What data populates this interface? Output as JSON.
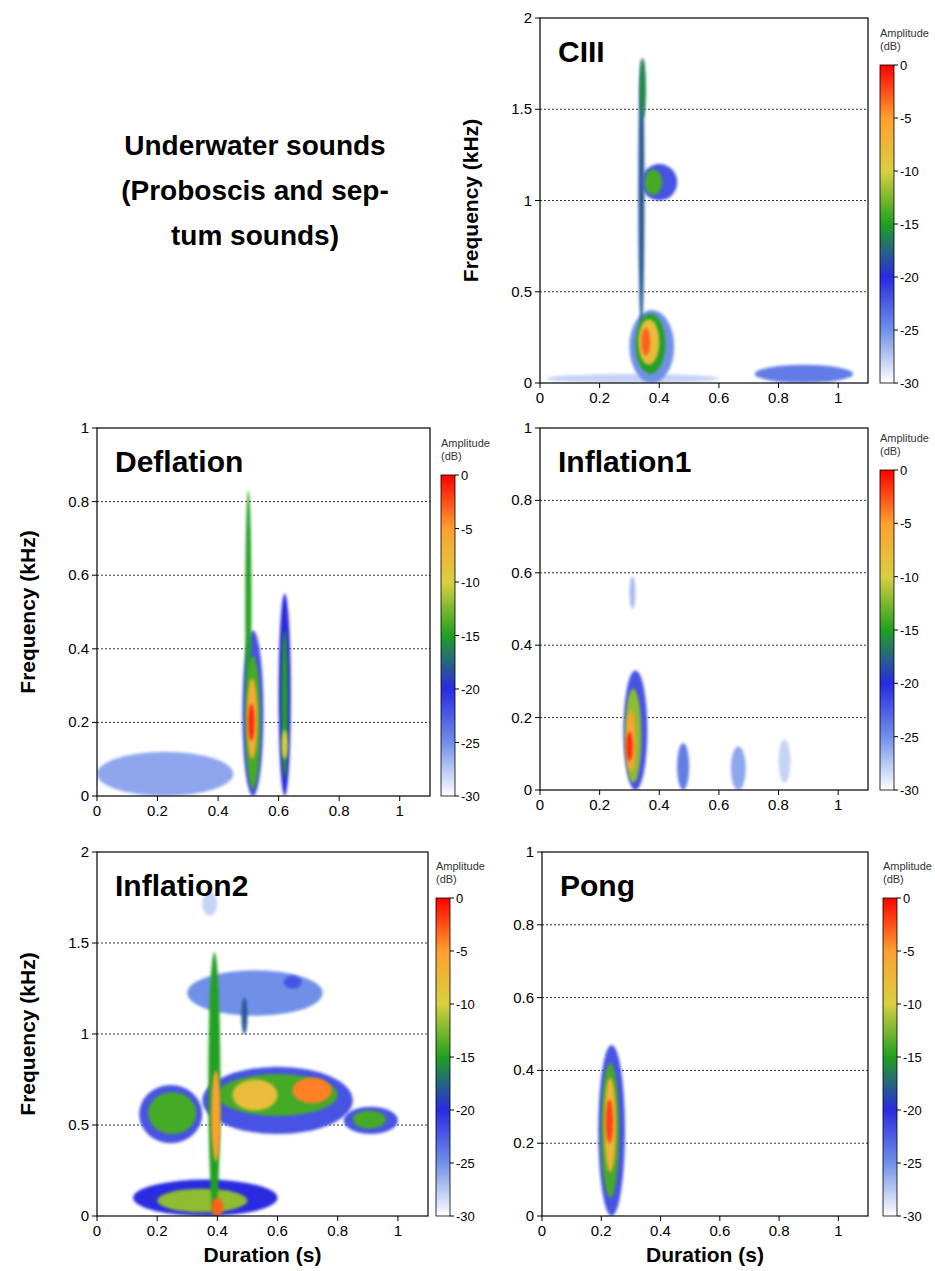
{
  "title_lines": [
    "Underwater sounds",
    "(Proboscis and sep-",
    "tum sounds)"
  ],
  "chart_data": [
    {
      "type": "spectrogram",
      "title": "CIII",
      "ylabel": "Frequency (kHz)",
      "xlim": [
        0,
        1.1
      ],
      "xticks": [
        0,
        0.2,
        0.4,
        0.6,
        0.8,
        1
      ],
      "ylim": [
        0,
        2
      ],
      "yticks": [
        0,
        0.5,
        1,
        1.5,
        2
      ],
      "grid": true,
      "colorbar_label": "Amplitude (dB)",
      "colorbar_lim": [
        -30,
        0
      ],
      "colorbar_ticks": [
        0,
        -5,
        -10,
        -15,
        -20,
        -25,
        -30
      ],
      "colors": [
        "#ff0000",
        "#ffa030",
        "#d8d040",
        "#20a020",
        "#2a2ae0",
        "#7090e8",
        "#ffffff"
      ],
      "cells": [
        {
          "x0": 0.02,
          "x1": 0.6,
          "y0": 0,
          "y1": 0.05,
          "value": -28
        },
        {
          "x0": 0.72,
          "x1": 1.05,
          "y0": 0,
          "y1": 0.1,
          "value": -24
        },
        {
          "x0": 0.3,
          "x1": 0.45,
          "y0": 0,
          "y1": 0.4,
          "value": -25
        },
        {
          "x0": 0.33,
          "x1": 0.35,
          "y0": 0.3,
          "y1": 1.78,
          "value": -18
        },
        {
          "x0": 0.34,
          "x1": 0.46,
          "y0": 1.0,
          "y1": 1.2,
          "value": -22
        },
        {
          "x0": 0.35,
          "x1": 0.41,
          "y0": 1.03,
          "y1": 1.17,
          "value": -14
        },
        {
          "x0": 0.335,
          "x1": 0.355,
          "y0": 1.45,
          "y1": 1.78,
          "value": -16
        },
        {
          "x0": 0.32,
          "x1": 0.42,
          "y0": 0.05,
          "y1": 0.38,
          "value": -15
        },
        {
          "x0": 0.33,
          "x1": 0.4,
          "y0": 0.1,
          "y1": 0.35,
          "value": -8
        },
        {
          "x0": 0.34,
          "x1": 0.37,
          "y0": 0.15,
          "y1": 0.3,
          "value": -3
        }
      ]
    },
    {
      "type": "spectrogram",
      "title": "Deflation",
      "ylabel": "Frequency (kHz)",
      "xlim": [
        0,
        1.1
      ],
      "xticks": [
        0,
        0.2,
        0.4,
        0.6,
        0.8,
        1
      ],
      "ylim": [
        0,
        1
      ],
      "yticks": [
        0,
        0.2,
        0.4,
        0.6,
        0.8,
        1
      ],
      "grid": true,
      "colorbar_label": "Amplitude (dB)",
      "colorbar_lim": [
        -30,
        0
      ],
      "colorbar_ticks": [
        0,
        -5,
        -10,
        -15,
        -20,
        -25,
        -30
      ],
      "colors": [
        "#ff0000",
        "#ffa030",
        "#d8d040",
        "#20a020",
        "#2a2ae0",
        "#7090e8",
        "#ffffff"
      ],
      "cells": [
        {
          "x0": 0.0,
          "x1": 0.45,
          "y0": 0,
          "y1": 0.12,
          "value": -26
        },
        {
          "x0": 0.48,
          "x1": 0.55,
          "y0": 0,
          "y1": 0.45,
          "value": -22
        },
        {
          "x0": 0.49,
          "x1": 0.51,
          "y0": 0.2,
          "y1": 0.83,
          "value": -15
        },
        {
          "x0": 0.49,
          "x1": 0.54,
          "y0": 0.02,
          "y1": 0.38,
          "value": -14
        },
        {
          "x0": 0.495,
          "x1": 0.53,
          "y0": 0.1,
          "y1": 0.32,
          "value": -6
        },
        {
          "x0": 0.5,
          "x1": 0.52,
          "y0": 0.15,
          "y1": 0.25,
          "value": -1
        },
        {
          "x0": 0.6,
          "x1": 0.64,
          "y0": 0,
          "y1": 0.55,
          "value": -20
        },
        {
          "x0": 0.61,
          "x1": 0.63,
          "y0": 0.05,
          "y1": 0.45,
          "value": -15
        },
        {
          "x0": 0.61,
          "x1": 0.63,
          "y0": 0.1,
          "y1": 0.18,
          "value": -10
        }
      ]
    },
    {
      "type": "spectrogram",
      "title": "Inflation1",
      "xlim": [
        0,
        1.1
      ],
      "xticks": [
        0,
        0.2,
        0.4,
        0.6,
        0.8,
        1
      ],
      "ylim": [
        0,
        1
      ],
      "yticks": [
        0,
        0.2,
        0.4,
        0.6,
        0.8,
        1
      ],
      "grid": true,
      "colorbar_label": "Amplitude (dB)",
      "colorbar_lim": [
        -30,
        0
      ],
      "colorbar_ticks": [
        0,
        -5,
        -10,
        -15,
        -20,
        -25,
        -30
      ],
      "colors": [
        "#ff0000",
        "#ffa030",
        "#d8d040",
        "#20a020",
        "#2a2ae0",
        "#7090e8",
        "#ffffff"
      ],
      "cells": [
        {
          "x0": 0.46,
          "x1": 0.5,
          "y0": 0,
          "y1": 0.13,
          "value": -24
        },
        {
          "x0": 0.64,
          "x1": 0.69,
          "y0": 0,
          "y1": 0.12,
          "value": -26
        },
        {
          "x0": 0.8,
          "x1": 0.84,
          "y0": 0.02,
          "y1": 0.14,
          "value": -28
        },
        {
          "x0": 0.3,
          "x1": 0.32,
          "y0": 0.5,
          "y1": 0.59,
          "value": -27
        },
        {
          "x0": 0.28,
          "x1": 0.36,
          "y0": 0,
          "y1": 0.33,
          "value": -22
        },
        {
          "x0": 0.285,
          "x1": 0.34,
          "y0": 0.02,
          "y1": 0.28,
          "value": -12
        },
        {
          "x0": 0.29,
          "x1": 0.32,
          "y0": 0.05,
          "y1": 0.22,
          "value": -5
        },
        {
          "x0": 0.29,
          "x1": 0.31,
          "y0": 0.08,
          "y1": 0.16,
          "value": -1
        }
      ]
    },
    {
      "type": "spectrogram",
      "title": "Inflation2",
      "ylabel": "Frequency (kHz)",
      "xlabel": "Duration (s)",
      "xlim": [
        0,
        1.1
      ],
      "xticks": [
        0,
        0.2,
        0.4,
        0.6,
        0.8,
        1
      ],
      "ylim": [
        0,
        2
      ],
      "yticks": [
        0,
        0.5,
        1,
        1.5,
        2
      ],
      "grid": true,
      "colorbar_label": "Amplitude (dB)",
      "colorbar_lim": [
        -30,
        0
      ],
      "colorbar_ticks": [
        0,
        -5,
        -10,
        -15,
        -20,
        -25,
        -30
      ],
      "colors": [
        "#ff0000",
        "#ffa030",
        "#d8d040",
        "#20a020",
        "#2a2ae0",
        "#7090e8",
        "#ffffff"
      ],
      "cells": [
        {
          "x0": 0.3,
          "x1": 0.75,
          "y0": 1.1,
          "y1": 1.35,
          "value": -25
        },
        {
          "x0": 0.35,
          "x1": 0.4,
          "y0": 1.65,
          "y1": 1.78,
          "value": -28
        },
        {
          "x0": 0.48,
          "x1": 0.5,
          "y0": 1.0,
          "y1": 1.2,
          "value": -18
        },
        {
          "x0": 0.62,
          "x1": 0.68,
          "y0": 1.25,
          "y1": 1.32,
          "value": -22
        },
        {
          "x0": 0.14,
          "x1": 0.35,
          "y0": 0.4,
          "y1": 0.72,
          "value": -22
        },
        {
          "x0": 0.35,
          "x1": 0.85,
          "y0": 0.45,
          "y1": 0.82,
          "value": -22
        },
        {
          "x0": 0.82,
          "x1": 1.0,
          "y0": 0.45,
          "y1": 0.6,
          "value": -22
        },
        {
          "x0": 0.12,
          "x1": 0.6,
          "y0": 0,
          "y1": 0.2,
          "value": -20
        },
        {
          "x0": 0.17,
          "x1": 0.33,
          "y0": 0.45,
          "y1": 0.68,
          "value": -14
        },
        {
          "x0": 0.4,
          "x1": 0.8,
          "y0": 0.55,
          "y1": 0.78,
          "value": -14
        },
        {
          "x0": 0.85,
          "x1": 0.96,
          "y0": 0.48,
          "y1": 0.58,
          "value": -14
        },
        {
          "x0": 0.2,
          "x1": 0.5,
          "y0": 0.02,
          "y1": 0.15,
          "value": -12
        },
        {
          "x0": 0.37,
          "x1": 0.41,
          "y0": 0,
          "y1": 1.45,
          "value": -15
        },
        {
          "x0": 0.45,
          "x1": 0.6,
          "y0": 0.58,
          "y1": 0.75,
          "value": -8
        },
        {
          "x0": 0.38,
          "x1": 0.41,
          "y0": 0.3,
          "y1": 0.8,
          "value": -5
        },
        {
          "x0": 0.65,
          "x1": 0.78,
          "y0": 0.62,
          "y1": 0.76,
          "value": -4
        },
        {
          "x0": 0.38,
          "x1": 0.42,
          "y0": 0,
          "y1": 0.1,
          "value": -3
        }
      ]
    },
    {
      "type": "spectrogram",
      "title": "Pong",
      "xlabel": "Duration (s)",
      "xlim": [
        0,
        1.1
      ],
      "xticks": [
        0,
        0.2,
        0.4,
        0.6,
        0.8,
        1
      ],
      "ylim": [
        0,
        1
      ],
      "yticks": [
        0,
        0.2,
        0.4,
        0.6,
        0.8,
        1
      ],
      "grid": true,
      "colorbar_label": "Amplitude (dB)",
      "colorbar_lim": [
        -30,
        0
      ],
      "colorbar_ticks": [
        0,
        -5,
        -10,
        -15,
        -20,
        -25,
        -30
      ],
      "colors": [
        "#ff0000",
        "#ffa030",
        "#d8d040",
        "#20a020",
        "#2a2ae0",
        "#7090e8",
        "#ffffff"
      ],
      "cells": [
        {
          "x0": 0.19,
          "x1": 0.28,
          "y0": 0,
          "y1": 0.47,
          "value": -22
        },
        {
          "x0": 0.2,
          "x1": 0.26,
          "y0": 0.05,
          "y1": 0.42,
          "value": -14
        },
        {
          "x0": 0.21,
          "x1": 0.25,
          "y0": 0.12,
          "y1": 0.38,
          "value": -7
        },
        {
          "x0": 0.215,
          "x1": 0.24,
          "y0": 0.2,
          "y1": 0.32,
          "value": -2
        }
      ]
    }
  ]
}
